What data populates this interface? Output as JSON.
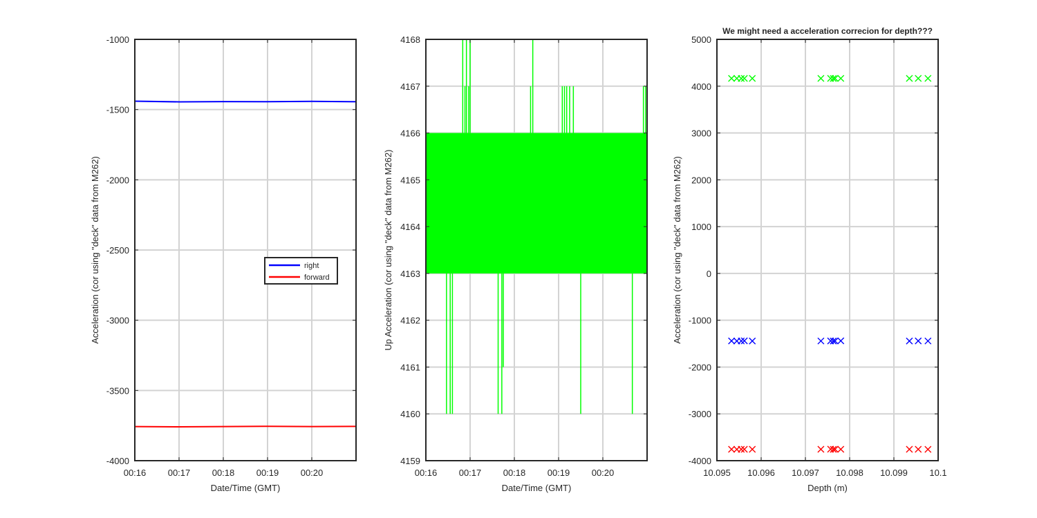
{
  "figure": {
    "background": "#ffffff",
    "axis_color": "#262626",
    "grid_color": "#d3d3d3"
  },
  "chart_data": [
    {
      "type": "line",
      "title": "",
      "xlabel": "Date/Time (GMT)",
      "ylabel": "Acceleration (cor using \"deck\" data from M262)",
      "x_ticks": [
        "00:16",
        "00:17",
        "00:18",
        "00:19",
        "00:20"
      ],
      "xlim": [
        "00:16",
        "00:21"
      ],
      "ylim": [
        -4000,
        -1000
      ],
      "yticks": [
        -4000,
        -3500,
        -3000,
        -2500,
        -2000,
        -1500,
        -1000
      ],
      "grid": true,
      "legend": {
        "placement": "center-right",
        "entries": [
          "right",
          "forward"
        ]
      },
      "series": [
        {
          "name": "right",
          "color": "#0000ff",
          "x": [
            "00:16",
            "00:17",
            "00:18",
            "00:19",
            "00:20",
            "00:21"
          ],
          "values": [
            -1440,
            -1445,
            -1443,
            -1444,
            -1441,
            -1444
          ]
        },
        {
          "name": "forward",
          "color": "#ff0000",
          "x": [
            "00:16",
            "00:17",
            "00:18",
            "00:19",
            "00:20",
            "00:21"
          ],
          "values": [
            -3757,
            -3759,
            -3757,
            -3755,
            -3757,
            -3756
          ]
        }
      ]
    },
    {
      "type": "line",
      "title": "",
      "xlabel": "Date/Time (GMT)",
      "ylabel": "Up Acceleration (cor using \"deck\" data from M262)",
      "x_ticks": [
        "00:16",
        "00:17",
        "00:18",
        "00:19",
        "00:20"
      ],
      "xlim": [
        "00:16",
        "00:21"
      ],
      "ylim": [
        4159,
        4168
      ],
      "yticks": [
        4159,
        4160,
        4161,
        4162,
        4163,
        4164,
        4165,
        4166,
        4167,
        4168
      ],
      "grid": true,
      "series": [
        {
          "color": "#00ff00",
          "base_band": [
            4163,
            4166
          ],
          "spikes": [
            {
              "time": "00:16:28",
              "value": 4160
            },
            {
              "time": "00:16:33",
              "value": 4160
            },
            {
              "time": "00:16:36",
              "value": 4160
            },
            {
              "time": "00:16:50",
              "value": 4168
            },
            {
              "time": "00:16:53",
              "value": 4167
            },
            {
              "time": "00:16:55",
              "value": 4168
            },
            {
              "time": "00:16:58",
              "value": 4167
            },
            {
              "time": "00:17:00",
              "value": 4168
            },
            {
              "time": "00:17:38",
              "value": 4160
            },
            {
              "time": "00:17:43",
              "value": 4160
            },
            {
              "time": "00:17:45",
              "value": 4161
            },
            {
              "time": "00:18:22",
              "value": 4167
            },
            {
              "time": "00:18:25",
              "value": 4168
            },
            {
              "time": "00:19:05",
              "value": 4167
            },
            {
              "time": "00:19:08",
              "value": 4167
            },
            {
              "time": "00:19:11",
              "value": 4167
            },
            {
              "time": "00:19:15",
              "value": 4167
            },
            {
              "time": "00:19:20",
              "value": 4167
            },
            {
              "time": "00:19:30",
              "value": 4160
            },
            {
              "time": "00:20:40",
              "value": 4160
            },
            {
              "time": "00:20:55",
              "value": 4167
            },
            {
              "time": "00:20:58",
              "value": 4167
            }
          ]
        }
      ]
    },
    {
      "type": "scatter",
      "title": "We might need a acceleration correcion for depth???",
      "xlabel": "Depth (m)",
      "ylabel": "Acceleration (cor using \"deck\" data from M262)",
      "xlim": [
        10.095,
        10.1
      ],
      "ylim": [
        -4000,
        5000
      ],
      "xticks": [
        10.095,
        10.096,
        10.097,
        10.098,
        10.099,
        10.1
      ],
      "xtick_labels": [
        "10.095",
        "10.096",
        "10.097",
        "10.098",
        "10.099",
        "10.1"
      ],
      "yticks": [
        -4000,
        -3000,
        -2000,
        -1000,
        0,
        1000,
        2000,
        3000,
        4000,
        5000
      ],
      "grid": true,
      "marker": "x",
      "series": [
        {
          "color": "#00ff00",
          "x": [
            10.09533,
            10.09545,
            10.09555,
            10.09562,
            10.0958,
            10.09735,
            10.09757,
            10.09763,
            10.09767,
            10.0978,
            10.09935,
            10.09955,
            10.09977
          ],
          "y": [
            4166,
            4166,
            4165,
            4167,
            4166,
            4166,
            4167,
            4165,
            4166,
            4166,
            4166,
            4166,
            4166
          ]
        },
        {
          "color": "#0000ff",
          "x": [
            10.09533,
            10.09545,
            10.09555,
            10.09562,
            10.0958,
            10.09735,
            10.09757,
            10.09763,
            10.09767,
            10.0978,
            10.09935,
            10.09955,
            10.09977
          ],
          "y": [
            -1442,
            -1444,
            -1443,
            -1441,
            -1444,
            -1443,
            -1442,
            -1444,
            -1443,
            -1441,
            -1444,
            -1442,
            -1443
          ]
        },
        {
          "color": "#ff0000",
          "x": [
            10.09533,
            10.09545,
            10.09555,
            10.09562,
            10.0958,
            10.09735,
            10.09757,
            10.09763,
            10.09767,
            10.0978,
            10.09935,
            10.09955,
            10.09977
          ],
          "y": [
            -3757,
            -3758,
            -3756,
            -3757,
            -3756,
            -3757,
            -3755,
            -3758,
            -3756,
            -3757,
            -3757,
            -3756,
            -3758
          ]
        }
      ]
    }
  ]
}
